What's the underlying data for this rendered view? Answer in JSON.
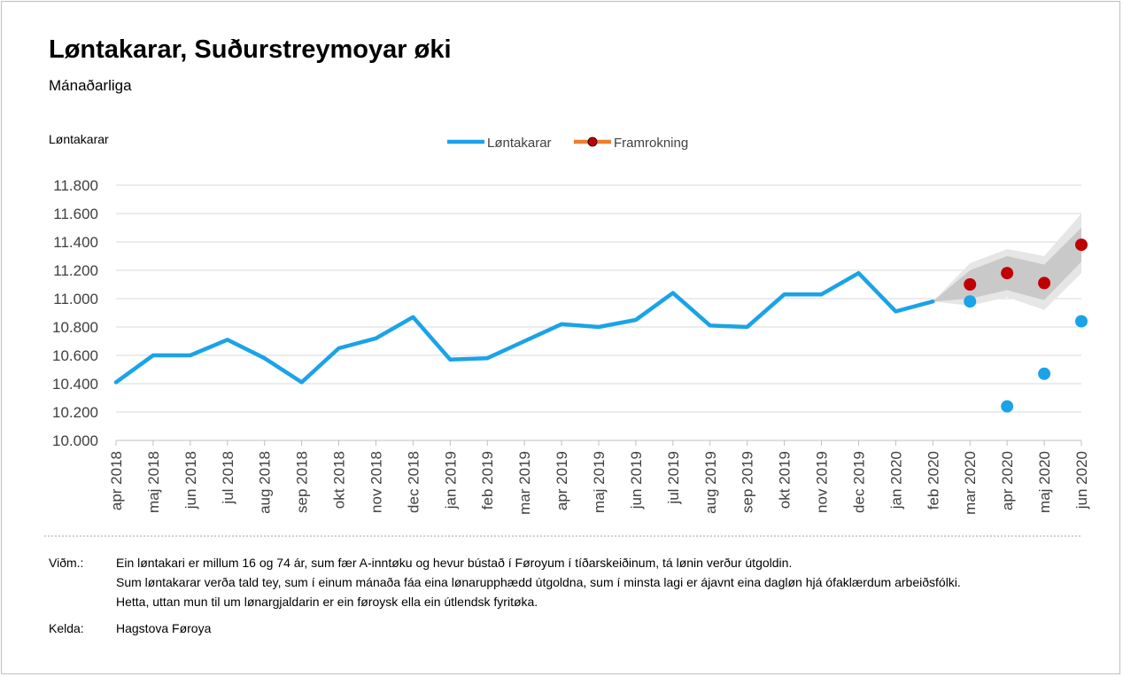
{
  "chart_data": {
    "type": "line",
    "title": "Løntakarar, Suðurstreymoyar øki",
    "subtitle": "Mánaðarliga",
    "ylabel": "Løntakarar",
    "xlabel": "",
    "ylim": [
      10000,
      11800
    ],
    "yticks": [
      "10.000",
      "10.200",
      "10.400",
      "10.600",
      "10.800",
      "11.000",
      "11.200",
      "11.400",
      "11.600",
      "11.800"
    ],
    "grid": true,
    "legend_position": "top-center",
    "categories": [
      "apr 2018",
      "maj 2018",
      "jun 2018",
      "jul 2018",
      "aug 2018",
      "sep 2018",
      "okt 2018",
      "nov 2018",
      "dec 2018",
      "jan 2019",
      "feb 2019",
      "mar 2019",
      "apr 2019",
      "maj 2019",
      "jun 2019",
      "jul 2019",
      "aug 2019",
      "sep 2019",
      "okt 2019",
      "nov 2019",
      "dec 2019",
      "jan 2020",
      "feb 2020",
      "mar 2020",
      "apr 2020",
      "maj 2020",
      "jun 2020"
    ],
    "series": [
      {
        "name": "Løntakarar",
        "color": "#1aa3e8",
        "line_values": [
          10410,
          10600,
          10600,
          10710,
          10580,
          10410,
          10650,
          10720,
          10870,
          10570,
          10580,
          10700,
          10820,
          10800,
          10850,
          11040,
          10810,
          10800,
          11030,
          11030,
          11180,
          10910,
          10980,
          null,
          null,
          null,
          null
        ],
        "point_values": [
          null,
          null,
          null,
          null,
          null,
          null,
          null,
          null,
          null,
          null,
          null,
          null,
          null,
          null,
          null,
          null,
          null,
          null,
          null,
          null,
          null,
          null,
          null,
          10980,
          10240,
          10470,
          10840
        ]
      },
      {
        "name": "Framrokning",
        "color": "#c00000",
        "line_color": "#ed7d31",
        "point_values": [
          null,
          null,
          null,
          null,
          null,
          null,
          null,
          null,
          null,
          null,
          null,
          null,
          null,
          null,
          null,
          null,
          null,
          null,
          null,
          null,
          null,
          null,
          null,
          11100,
          11180,
          11110,
          11380
        ]
      }
    ],
    "bands": [
      {
        "color": "#e6e6e6",
        "lower": [
          null,
          null,
          null,
          null,
          null,
          null,
          null,
          null,
          null,
          null,
          null,
          null,
          null,
          null,
          null,
          null,
          null,
          null,
          null,
          null,
          null,
          null,
          10980,
          10950,
          11010,
          10920,
          11180
        ],
        "upper": [
          null,
          null,
          null,
          null,
          null,
          null,
          null,
          null,
          null,
          null,
          null,
          null,
          null,
          null,
          null,
          null,
          null,
          null,
          null,
          null,
          null,
          null,
          10980,
          11250,
          11350,
          11300,
          11600
        ]
      },
      {
        "color": "#c9c9c9",
        "lower": [
          null,
          null,
          null,
          null,
          null,
          null,
          null,
          null,
          null,
          null,
          null,
          null,
          null,
          null,
          null,
          null,
          null,
          null,
          null,
          null,
          null,
          null,
          10980,
          11000,
          11060,
          10990,
          11260
        ],
        "upper": [
          null,
          null,
          null,
          null,
          null,
          null,
          null,
          null,
          null,
          null,
          null,
          null,
          null,
          null,
          null,
          null,
          null,
          null,
          null,
          null,
          null,
          null,
          10980,
          11200,
          11300,
          11240,
          11500
        ]
      }
    ]
  },
  "notes": {
    "label": "Viðm.:",
    "lines": [
      "Ein løntakari er millum 16 og 74 ár, sum fær A-inntøku og hevur bústað í Føroyum í tíðarskeiðinum, tá lønin verður útgoldin.",
      "Sum løntakarar verða tald tey, sum í einum mánaða fáa eina lønarupphædd útgoldna, sum í minsta lagi er ájavnt eina dagløn hjá ófaklærdum arbeiðsfólki.",
      "Hetta, uttan mun til um lønargjaldarin er ein føroysk ella ein útlendsk fyritøka."
    ]
  },
  "source": {
    "label": "Kelda:",
    "value": "Hagstova Føroya"
  }
}
